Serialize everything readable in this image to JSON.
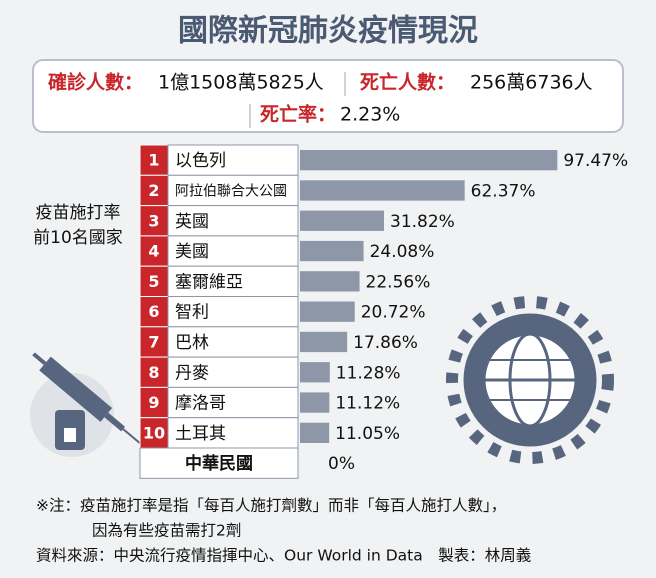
{
  "chart_data": {
    "type": "bar",
    "orientation": "horizontal",
    "title": "國際新冠肺炎疫情現況",
    "stats": [
      {
        "label": "確診人數：",
        "value": "1億1508萬5825人"
      },
      {
        "label": "死亡人數：",
        "value": "256萬6736人"
      },
      {
        "label": "死亡率：",
        "value": "2.23%"
      }
    ],
    "axis_label": [
      "疫苗施打率",
      "前10名國家"
    ],
    "ranks": [
      "1",
      "2",
      "3",
      "4",
      "5",
      "6",
      "7",
      "8",
      "9",
      "10",
      null
    ],
    "categories": [
      "以色列",
      "阿拉伯聯合大公國",
      "英國",
      "美國",
      "塞爾維亞",
      "智利",
      "巴林",
      "丹麥",
      "摩洛哥",
      "土耳其",
      "中華民國"
    ],
    "values": [
      97.47,
      62.37,
      31.82,
      24.08,
      22.56,
      20.72,
      17.86,
      11.28,
      11.12,
      11.05,
      0
    ],
    "value_labels": [
      "97.47%",
      "62.37%",
      "31.82%",
      "24.08%",
      "22.56%",
      "20.72%",
      "17.86%",
      "11.28%",
      "11.12%",
      "11.05%",
      "0%"
    ],
    "color": "#8d97a8",
    "notes": [
      "※注：疫苗施打率是指「每百人施打劑數」而非「每百人施打人數」，",
      "因為有些疫苗需打2劑"
    ],
    "source": "資料來源：中央流行疫情指揮中心、Our World in Data　製表：林周義"
  }
}
